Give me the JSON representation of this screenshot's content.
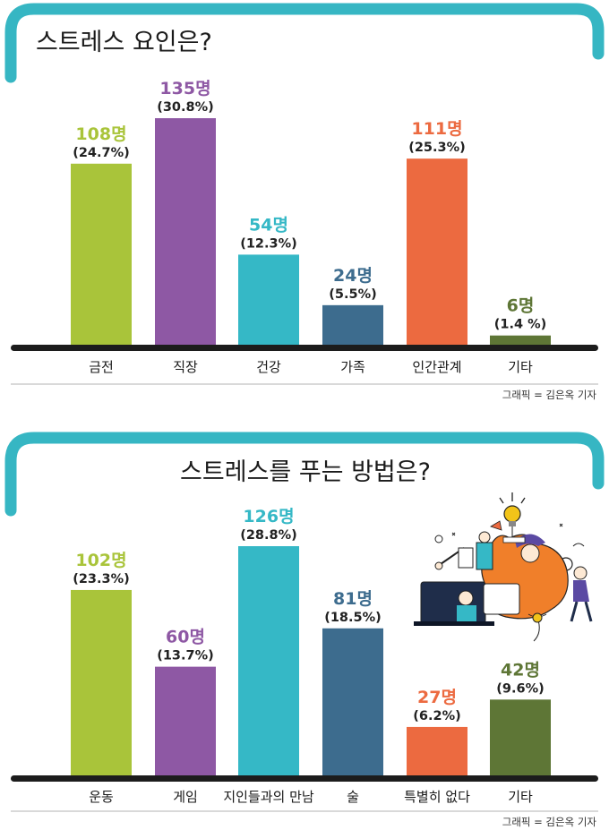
{
  "colors": {
    "teal_frame": "#36b6c3",
    "axis": "#1c1c1c"
  },
  "illustration": {
    "name": "people-working-with-ideas-illustration",
    "lightbulb_color": "#f2c419",
    "figure_color": "#f07f2a"
  },
  "chart_data": [
    {
      "type": "bar",
      "title": "스트레스 요인은?",
      "credit": "그래픽 = 김은옥 기자",
      "categories": [
        "금전",
        "직장",
        "건강",
        "가족",
        "인간관계",
        "기타"
      ],
      "values": [
        108,
        135,
        54,
        24,
        111,
        6
      ],
      "count_labels": [
        "108명",
        "135명",
        "54명",
        "24명",
        "111명",
        "6명"
      ],
      "percent_labels": [
        "(24.7%)",
        "(30.8%)",
        "(12.3%)",
        "(5.5%)",
        "(25.3%)",
        "(1.4 %)"
      ],
      "colors": [
        "#a9c43a",
        "#8e58a4",
        "#35b8c6",
        "#3d6c8e",
        "#ec6a40",
        "#5e7636"
      ],
      "ylim": [
        0,
        135
      ],
      "grid": false
    },
    {
      "type": "bar",
      "title": "스트레스를 푸는 방법은?",
      "credit": "그래픽 = 김은옥 기자",
      "categories": [
        "운동",
        "게임",
        "지인들과의 만남",
        "술",
        "특별히 없다",
        "기타"
      ],
      "values": [
        102,
        60,
        126,
        81,
        27,
        42
      ],
      "count_labels": [
        "102명",
        "60명",
        "126명",
        "81명",
        "27명",
        "42명"
      ],
      "percent_labels": [
        "(23.3%)",
        "(13.7%)",
        "(28.8%)",
        "(18.5%)",
        "(6.2%)",
        "(9.6%)"
      ],
      "colors": [
        "#a9c43a",
        "#8e58a4",
        "#35b8c6",
        "#3d6c8e",
        "#ec6a40",
        "#5e7636"
      ],
      "ylim": [
        0,
        126
      ],
      "grid": false
    }
  ]
}
